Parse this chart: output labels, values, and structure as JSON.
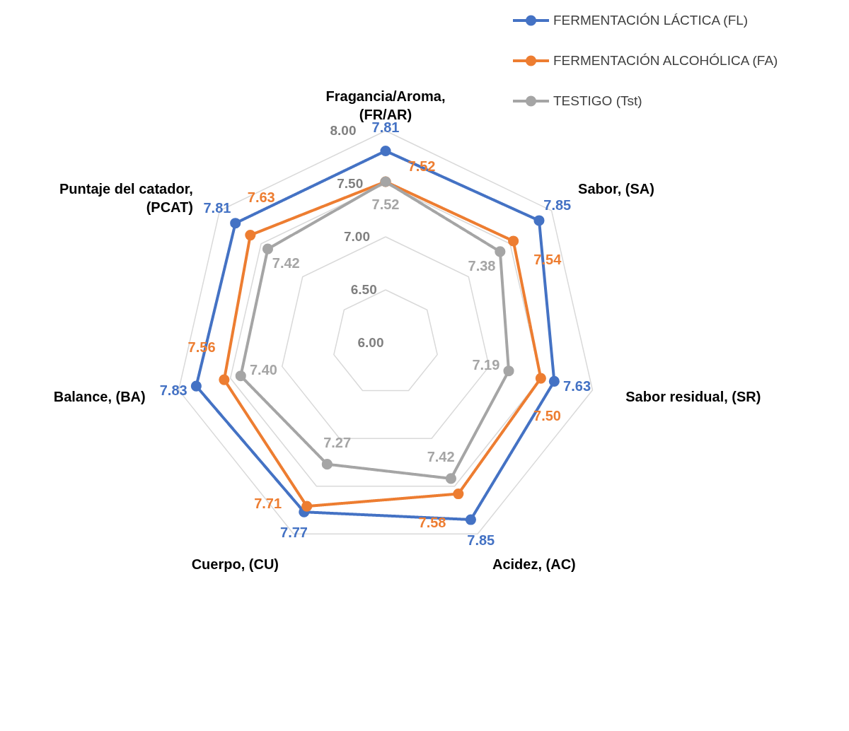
{
  "chart_data": {
    "type": "radar",
    "categories": [
      "Fragancia/Aroma, (FR/AR)",
      "Sabor, (SA)",
      "Sabor residual, (SR)",
      "Acidez, (AC)",
      "Cuerpo, (CU)",
      "Balance, (BA)",
      "Puntaje del catador, (PCAT)"
    ],
    "series": [
      {
        "name": "FERMENTACIÓN LÁCTICA (FL)",
        "color": "#4472c4",
        "values": [
          7.81,
          7.85,
          7.63,
          7.85,
          7.77,
          7.83,
          7.81
        ],
        "value_labels": [
          "7.81",
          "7.85",
          "7.63",
          "7.85",
          "7.77",
          "7.83",
          "7.81"
        ]
      },
      {
        "name": "FERMENTACIÓN ALCOHÓLICA (FA)",
        "color": "#ed7d31",
        "values": [
          7.52,
          7.54,
          7.5,
          7.58,
          7.71,
          7.56,
          7.63
        ],
        "value_labels": [
          "7.52",
          "7.54",
          "7.50",
          "7.58",
          "7.71",
          "7.56",
          "7.63"
        ]
      },
      {
        "name": "TESTIGO (Tst)",
        "color": "#a5a5a5",
        "values": [
          7.52,
          7.38,
          7.19,
          7.42,
          7.27,
          7.4,
          7.42
        ],
        "value_labels": [
          "7.52",
          "7.38",
          "7.19",
          "7.42",
          "7.27",
          "7.40",
          "7.42"
        ]
      }
    ],
    "ylim": [
      6,
      8
    ],
    "yticks": [
      {
        "value": 6,
        "label": "6.00"
      },
      {
        "value": 6.5,
        "label": "6.50"
      },
      {
        "value": 7,
        "label": "7.00"
      },
      {
        "value": 7.5,
        "label": "7.50"
      },
      {
        "value": 8,
        "label": "8.00"
      }
    ],
    "grid": true,
    "legend": "top right",
    "marker": "circle",
    "line_style": "solid"
  }
}
